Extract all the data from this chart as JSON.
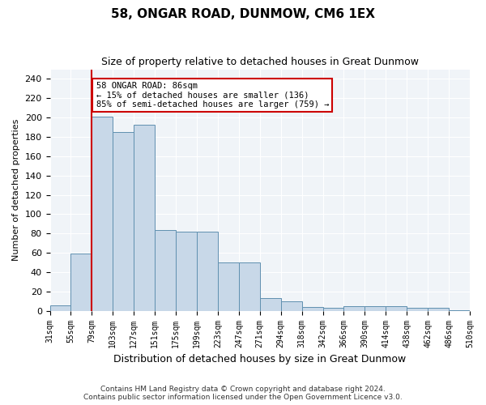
{
  "title": "58, ONGAR ROAD, DUNMOW, CM6 1EX",
  "subtitle": "Size of property relative to detached houses in Great Dunmow",
  "xlabel": "Distribution of detached houses by size in Great Dunmow",
  "ylabel": "Number of detached properties",
  "bin_labels": [
    "31sqm",
    "55sqm",
    "79sqm",
    "103sqm",
    "127sqm",
    "151sqm",
    "175sqm",
    "199sqm",
    "223sqm",
    "247sqm",
    "271sqm",
    "294sqm",
    "318sqm",
    "342sqm",
    "366sqm",
    "390sqm",
    "414sqm",
    "438sqm",
    "462sqm",
    "486sqm",
    "510sqm"
  ],
  "bar_values": [
    6,
    59,
    201,
    185,
    193,
    84,
    82,
    82,
    50,
    50,
    13,
    10,
    4,
    3,
    5,
    5,
    5,
    3,
    3,
    1
  ],
  "bar_color": "#c8d8e8",
  "bar_edge_color": "#6090b0",
  "vline_x": 1.5,
  "vline_color": "#cc0000",
  "annotation_text": "58 ONGAR ROAD: 86sqm\n← 15% of detached houses are smaller (136)\n85% of semi-detached houses are larger (759) →",
  "annotation_box_color": "#cc0000",
  "ylim": [
    0,
    250
  ],
  "yticks": [
    0,
    20,
    40,
    60,
    80,
    100,
    120,
    140,
    160,
    180,
    200,
    220,
    240
  ],
  "background_color": "#f0f4f8",
  "footer_line1": "Contains HM Land Registry data © Crown copyright and database right 2024.",
  "footer_line2": "Contains public sector information licensed under the Open Government Licence v3.0."
}
